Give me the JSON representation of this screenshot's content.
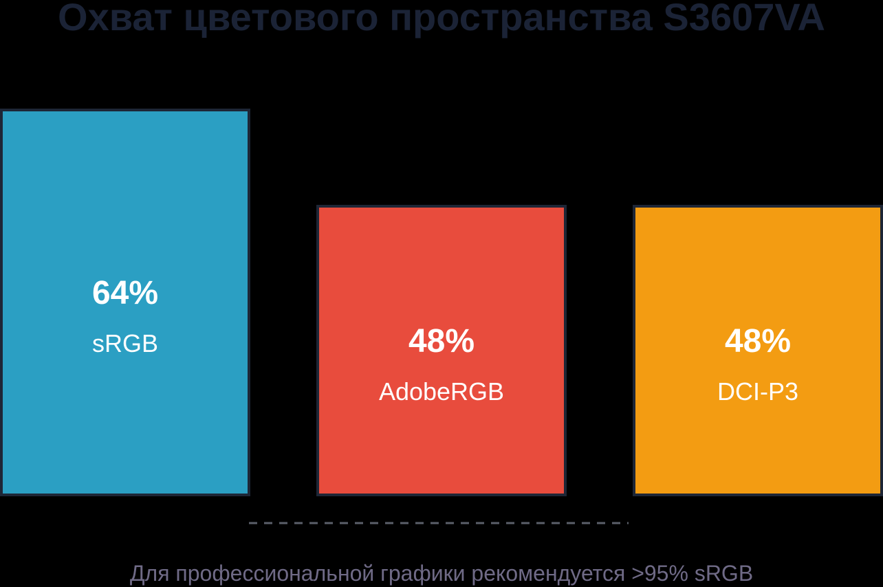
{
  "chart_data": {
    "type": "bar",
    "title": "Охват цветового пространства S3607VA",
    "categories": [
      "sRGB",
      "AdobeRGB",
      "DCI-P3"
    ],
    "values": [
      64,
      48,
      48
    ],
    "value_labels": [
      "64%",
      "48%",
      "48%"
    ],
    "colors": [
      "#2b9fc3",
      "#e84c3d",
      "#f39c12"
    ],
    "xlabel": "",
    "ylabel": "",
    "ylim": [
      0,
      100
    ],
    "grid": false,
    "legend": "none",
    "note": "Для профессиональной графики рекомендуется >95% sRGB"
  }
}
